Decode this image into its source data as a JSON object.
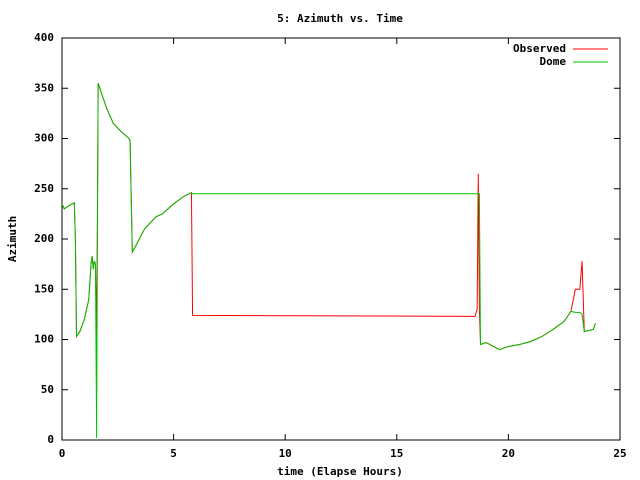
{
  "chart_data": {
    "type": "line",
    "title": "5: Azimuth vs. Time",
    "x_label": "time (Elapse Hours)",
    "y_label": "Azimuth",
    "x": [
      0,
      0.1,
      0.3,
      0.55,
      0.6,
      0.65,
      0.8,
      1.0,
      1.2,
      1.3,
      1.35,
      1.4,
      1.45,
      1.5,
      1.55,
      1.6,
      1.62,
      2.0,
      2.3,
      2.6,
      3.0,
      3.05,
      3.15,
      3.3,
      3.7,
      4.2,
      4.5,
      5.0,
      5.5,
      5.8,
      5.85,
      18.5,
      18.6,
      18.65,
      18.7,
      18.75,
      19.0,
      19.6,
      20.0,
      20.5,
      21.0,
      21.5,
      22.0,
      22.5,
      22.8,
      23.0,
      23.2,
      23.3,
      23.4,
      23.8,
      23.9
    ],
    "series": [
      {
        "name": "Observed",
        "color": "#ff0000",
        "values": [
          235,
          230,
          233,
          236,
          200,
          103,
          108,
          120,
          140,
          175,
          183,
          170,
          178,
          175,
          100,
          270,
          355,
          330,
          315,
          308,
          300,
          298,
          187,
          193,
          210,
          222,
          225,
          235,
          243,
          246,
          124,
          123,
          130,
          265,
          130,
          95,
          97,
          90,
          93,
          95,
          98,
          103,
          110,
          118,
          128,
          150,
          150,
          178,
          108,
          110,
          116
        ]
      },
      {
        "name": "Dome",
        "color": "#00c000",
        "values": [
          235,
          230,
          233,
          236,
          200,
          103,
          108,
          120,
          140,
          175,
          183,
          170,
          178,
          175,
          2,
          270,
          355,
          330,
          315,
          308,
          300,
          298,
          187,
          193,
          210,
          222,
          225,
          235,
          243,
          246,
          245,
          245,
          245,
          245,
          245,
          95,
          97,
          90,
          93,
          95,
          98,
          103,
          110,
          118,
          128,
          127,
          127,
          125,
          108,
          110,
          116
        ]
      }
    ],
    "xlim": [
      0,
      25
    ],
    "xticks": [
      0,
      5,
      10,
      15,
      20,
      25
    ],
    "ylim": [
      0,
      400
    ],
    "yticks": [
      0,
      50,
      100,
      150,
      200,
      250,
      300,
      350,
      400
    ],
    "legend": "top-right",
    "grid": false
  }
}
